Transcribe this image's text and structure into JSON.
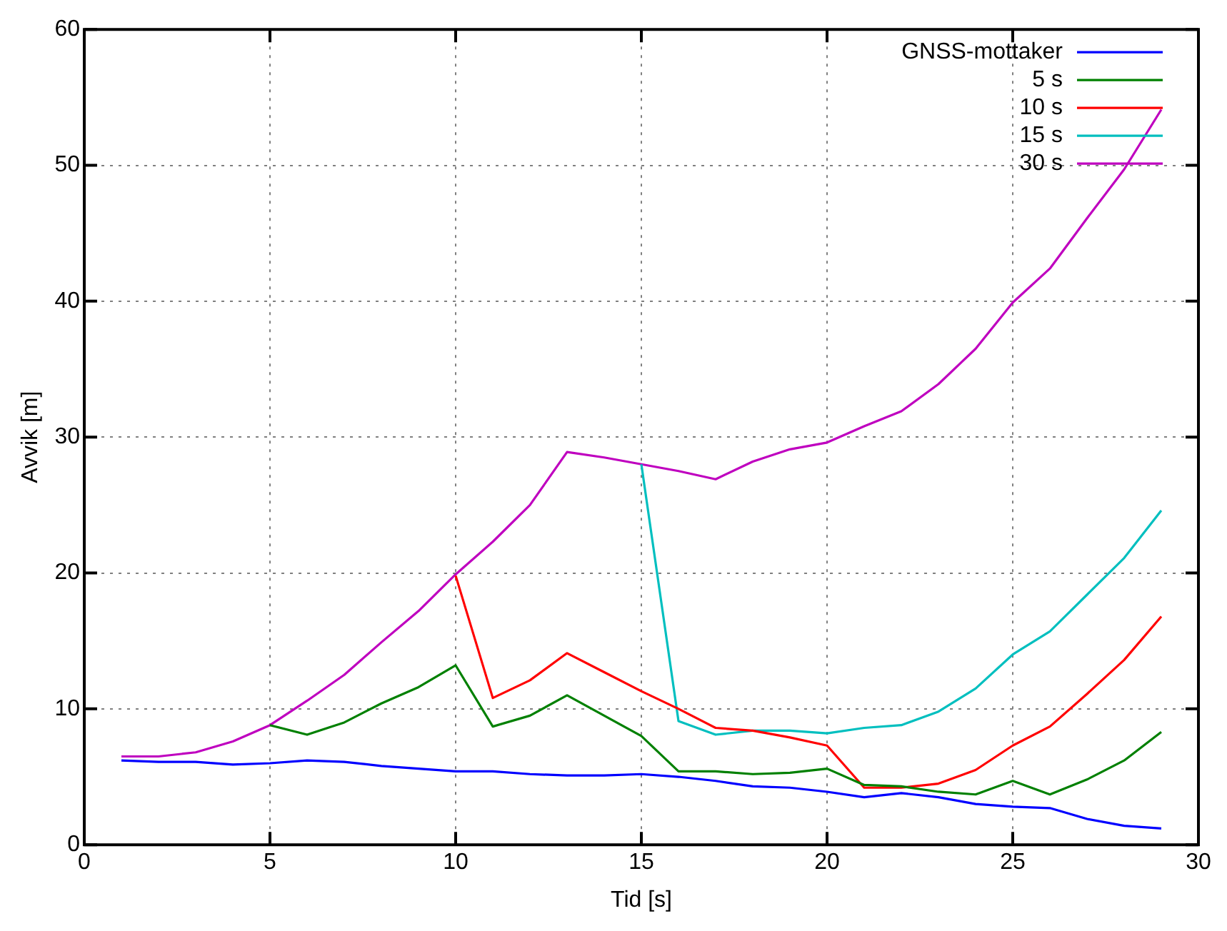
{
  "chart_data": {
    "type": "line",
    "xlabel": "Tid [s]",
    "ylabel": "Avvik [m]",
    "xlim": [
      0,
      30
    ],
    "xticks": [
      0,
      5,
      10,
      15,
      20,
      25,
      30
    ],
    "ylim": [
      0,
      60
    ],
    "yticks": [
      0,
      10,
      20,
      30,
      40,
      50,
      60
    ],
    "grid": true,
    "legend": "top right",
    "marker": "none",
    "line_style": "solid",
    "series": [
      {
        "name": "GNSS-mottaker",
        "color": "#0000ff",
        "x": [
          1,
          2,
          3,
          4,
          5,
          6,
          7,
          8,
          9,
          10,
          11,
          12,
          13,
          14,
          15,
          16,
          17,
          18,
          19,
          20,
          21,
          22,
          23,
          24,
          25,
          26,
          27,
          28,
          29
        ],
        "values": [
          6.2,
          6.1,
          6.1,
          5.9,
          6.0,
          6.2,
          6.1,
          5.8,
          5.6,
          5.4,
          5.4,
          5.2,
          5.1,
          5.1,
          5.2,
          5.0,
          4.7,
          4.3,
          4.2,
          3.9,
          3.5,
          3.8,
          3.5,
          3.0,
          2.8,
          2.7,
          1.9,
          1.4,
          1.2
        ]
      },
      {
        "name": "5 s",
        "color": "#008000",
        "x": [
          5,
          6,
          7,
          8,
          9,
          10,
          11,
          12,
          13,
          14,
          15,
          16,
          17,
          18,
          19,
          20,
          21,
          22,
          23,
          24,
          25,
          26,
          27,
          28,
          29
        ],
        "values": [
          8.8,
          8.1,
          9.0,
          10.4,
          11.6,
          13.2,
          8.7,
          9.5,
          11.0,
          9.5,
          8.0,
          5.4,
          5.4,
          5.2,
          5.3,
          5.6,
          4.4,
          4.3,
          3.9,
          3.7,
          4.7,
          3.7,
          4.8,
          6.2,
          8.3
        ]
      },
      {
        "name": "10 s",
        "color": "#ff0000",
        "x": [
          10,
          11,
          12,
          13,
          14,
          15,
          16,
          17,
          18,
          19,
          20,
          21,
          22,
          23,
          24,
          25,
          26,
          27,
          28,
          29
        ],
        "values": [
          19.8,
          10.8,
          12.1,
          14.1,
          12.7,
          11.3,
          10.0,
          8.6,
          8.4,
          7.9,
          7.3,
          4.2,
          4.2,
          4.5,
          5.5,
          7.3,
          8.7,
          11.1,
          13.6,
          16.8
        ]
      },
      {
        "name": "15 s",
        "color": "#00bfbf",
        "x": [
          15,
          16,
          17,
          18,
          19,
          20,
          21,
          22,
          23,
          24,
          25,
          26,
          27,
          28,
          29
        ],
        "values": [
          28.0,
          9.1,
          8.1,
          8.4,
          8.4,
          8.2,
          8.6,
          8.8,
          9.8,
          11.5,
          14.0,
          15.7,
          18.4,
          21.1,
          24.6
        ]
      },
      {
        "name": "30 s",
        "color": "#bf00bf",
        "x": [
          1,
          2,
          3,
          4,
          5,
          6,
          7,
          8,
          9,
          10,
          11,
          12,
          13,
          14,
          15,
          16,
          17,
          18,
          19,
          20,
          21,
          22,
          23,
          24,
          25,
          26,
          27,
          28,
          29
        ],
        "values": [
          6.5,
          6.5,
          6.8,
          7.6,
          8.8,
          10.6,
          12.5,
          14.9,
          17.2,
          19.9,
          22.3,
          25.0,
          28.9,
          28.5,
          28.0,
          27.5,
          26.9,
          28.2,
          29.1,
          29.6,
          30.8,
          31.9,
          33.9,
          36.5,
          39.9,
          42.4,
          46.1,
          49.7,
          54.1
        ]
      }
    ]
  }
}
